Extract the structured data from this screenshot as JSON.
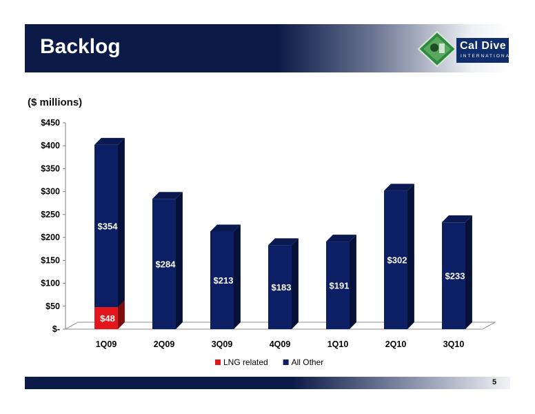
{
  "header": {
    "title": "Backlog"
  },
  "logo": {
    "main": "Cal Dive",
    "sub": "INTERNATIONAL"
  },
  "units_label": "($ millions)",
  "page_number": "5",
  "colors": {
    "navy": "#0b1a47",
    "bar_blue": "#0c1f64",
    "bar_red": "#e3161c"
  },
  "chart_data": {
    "type": "bar",
    "stacked": true,
    "categories": [
      "1Q09",
      "2Q09",
      "3Q09",
      "4Q09",
      "1Q10",
      "2Q10",
      "3Q10"
    ],
    "series": [
      {
        "name": "LNG related",
        "color": "#e3161c",
        "values": [
          48,
          0,
          0,
          0,
          0,
          0,
          0
        ],
        "labels": [
          "$48",
          "",
          "",
          "",
          "",
          "",
          ""
        ]
      },
      {
        "name": "All Other",
        "color": "#0c1f64",
        "values": [
          354,
          284,
          213,
          183,
          191,
          302,
          233
        ],
        "labels": [
          "$354",
          "$284",
          "$213",
          "$183",
          "$191",
          "$302",
          "$233"
        ]
      }
    ],
    "yticks": [
      "$-",
      "$50",
      "$100",
      "$150",
      "$200",
      "$250",
      "$300",
      "$350",
      "$400",
      "$450"
    ],
    "ylim": [
      0,
      450
    ],
    "legend": "bottom",
    "grid": false
  }
}
